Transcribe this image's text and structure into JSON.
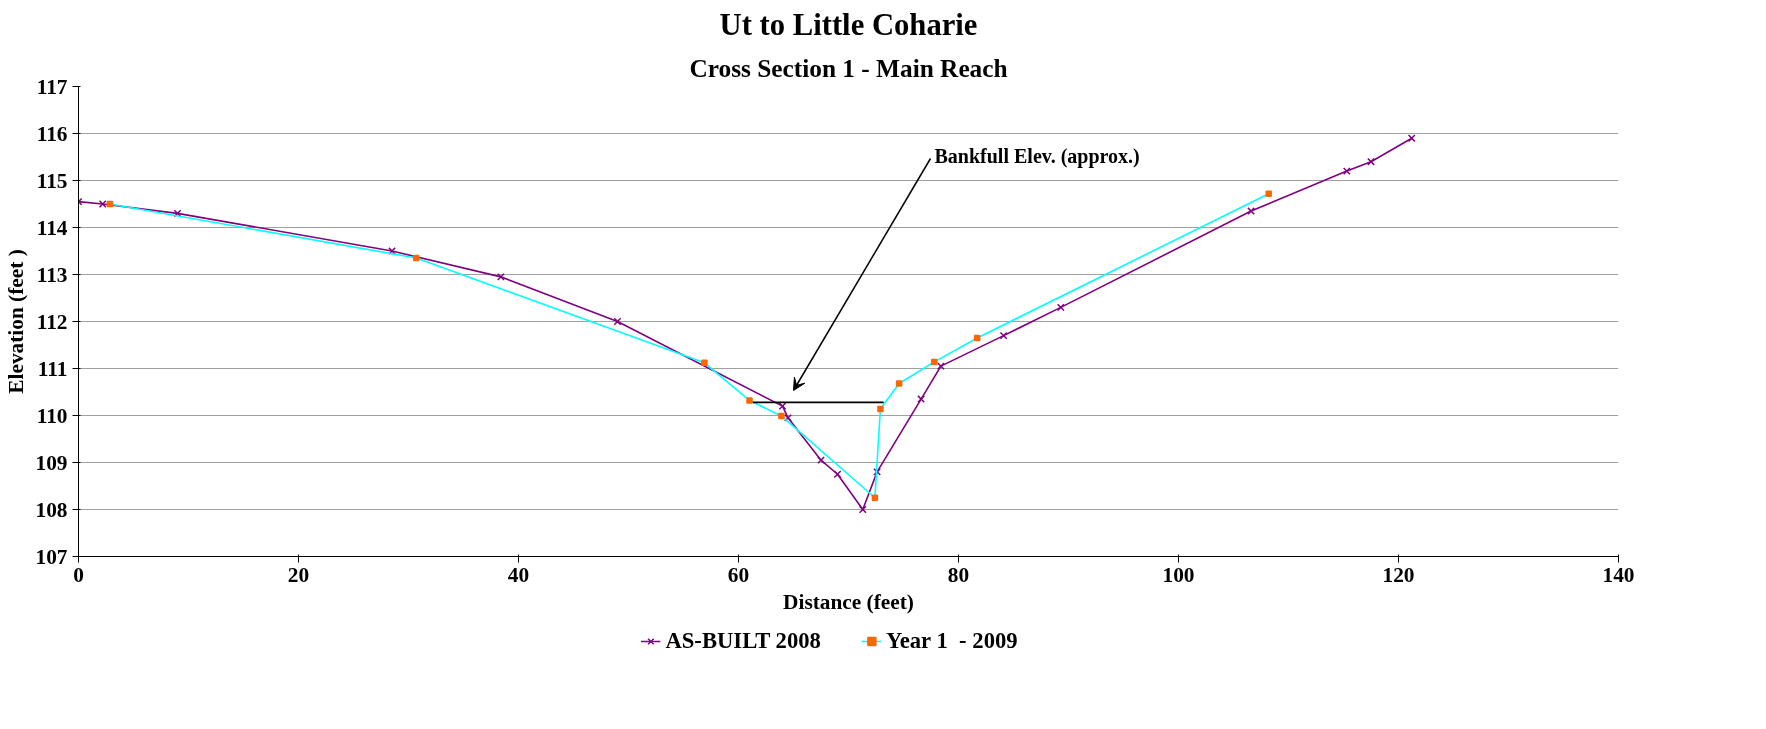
{
  "chart_data": {
    "type": "line",
    "title": "Ut to Little Coharie",
    "subtitle": "Cross Section 1 - Main Reach",
    "xlabel": "Distance (feet)",
    "ylabel": "Elevation (feet )",
    "xlim": [
      0,
      140
    ],
    "xticks": [
      0,
      20,
      40,
      60,
      80,
      100,
      120,
      140
    ],
    "ylim": [
      107,
      117
    ],
    "yticks": [
      107,
      108,
      109,
      110,
      111,
      112,
      113,
      114,
      115,
      116,
      117
    ],
    "grid": "y",
    "legend": "bottom",
    "series": [
      {
        "name": "AS-BUILT 2008",
        "color": "#800080",
        "marker": "cross",
        "x": [
          0,
          2.2,
          9,
          28.5,
          38.4,
          49,
          64,
          64.5,
          67.5,
          69,
          71.3,
          72.6,
          76.6,
          78.4,
          84.1,
          89.3,
          106.6,
          115.3,
          117.5,
          121.2
        ],
        "values": [
          114.55,
          114.5,
          114.3,
          113.5,
          112.95,
          112.0,
          110.2,
          109.95,
          109.05,
          108.75,
          108.0,
          108.8,
          110.35,
          111.05,
          111.7,
          112.3,
          114.35,
          115.2,
          115.4,
          115.9
        ]
      },
      {
        "name": "Year 1  - 2009",
        "color": "#00ffff",
        "marker": "square",
        "colors": [
          "#ff6600",
          "#ff6600",
          "#ff6600",
          "#ff6600",
          "#ff6600",
          "#ff6600",
          "#ff6600",
          "#ff6600",
          "#ff6600",
          "#ff6600",
          "#ff6600"
        ],
        "x": [
          2.85,
          30.7,
          56.9,
          61.0,
          63.9,
          72.4,
          72.9,
          74.6,
          77.8,
          81.7,
          108.2
        ],
        "values": [
          114.5,
          113.35,
          111.12,
          110.32,
          109.99,
          108.25,
          110.14,
          110.68,
          111.14,
          111.65,
          114.72
        ]
      },
      {
        "color": "#000000",
        "marker": "none",
        "x": [
          61.3,
          73.2
        ],
        "values": [
          110.28,
          110.28
        ]
      }
    ],
    "annotations": [
      "Bankfull Elev. (approx.)"
    ]
  }
}
